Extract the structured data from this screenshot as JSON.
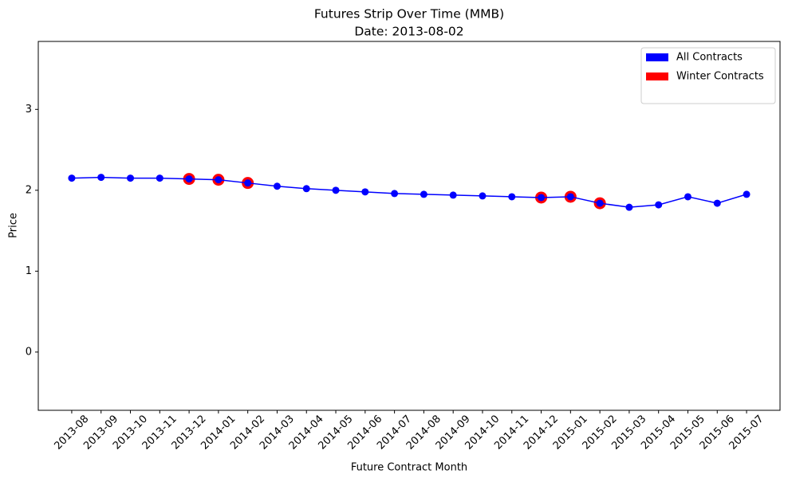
{
  "chart_data": {
    "type": "line",
    "title": "Futures Strip Over Time (MMB)",
    "subtitle": "Date: 2013-08-02",
    "x_label": "Future Contract Month",
    "y_label": "Price",
    "categories": [
      "2013-08",
      "2013-09",
      "2013-10",
      "2013-11",
      "2013-12",
      "2014-01",
      "2014-02",
      "2014-03",
      "2014-04",
      "2014-05",
      "2014-06",
      "2014-07",
      "2014-08",
      "2014-09",
      "2014-10",
      "2014-11",
      "2014-12",
      "2015-01",
      "2015-02",
      "2015-03",
      "2015-04",
      "2015-05",
      "2015-06",
      "2015-07"
    ],
    "series": [
      {
        "name": "All Contracts",
        "color": "#0000ff",
        "linestyle": "solid",
        "values": [
          2.15,
          2.16,
          2.15,
          2.15,
          2.14,
          2.13,
          2.09,
          2.05,
          2.02,
          2.0,
          1.98,
          1.96,
          1.95,
          1.94,
          1.93,
          1.92,
          1.91,
          1.92,
          1.84,
          1.79,
          1.82,
          1.92,
          1.84,
          1.95
        ]
      },
      {
        "name": "Winter Contracts",
        "color": "#ff0000",
        "linestyle": "none",
        "values": [
          null,
          null,
          null,
          null,
          2.14,
          2.13,
          2.09,
          null,
          null,
          null,
          null,
          null,
          null,
          null,
          null,
          null,
          1.91,
          1.92,
          1.84,
          null,
          null,
          null,
          null,
          null
        ]
      }
    ],
    "ylim": [
      -0.72,
      3.84
    ],
    "yticks": [
      0,
      1,
      2,
      3
    ],
    "grid": false,
    "legend": "upper right"
  }
}
